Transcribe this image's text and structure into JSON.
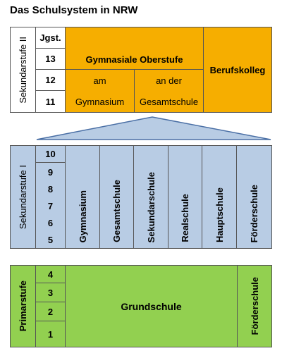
{
  "title": "Das Schulsystem in NRW",
  "sek2": {
    "label": "Sekundarstufe II",
    "jgst_header": "Jgst.",
    "grades": [
      "13",
      "12",
      "11"
    ],
    "gym_oberstufe": "Gymnasiale Oberstufe",
    "am": "am",
    "gymnasium": "Gymnasium",
    "an_der": "an der",
    "gesamtschule": "Gesamtschule",
    "berufskolleg": "Berufskolleg"
  },
  "sek1": {
    "label": "Sekundarstufe I",
    "grades": [
      "10",
      "9",
      "8",
      "7",
      "6",
      "5"
    ],
    "schools": [
      "Gymnasium",
      "Gesamtschule",
      "Sekundarschule",
      "Realschule",
      "Hauptschule",
      "Förderschule"
    ]
  },
  "primar": {
    "label": "Primarstufe",
    "grades": [
      "4",
      "3",
      "2",
      "1"
    ],
    "grundschule": "Grundschule",
    "foerderschule": "Förderschule"
  },
  "colors": {
    "orange": "#f6ae00",
    "blue": "#b8cce4",
    "green": "#92d050",
    "border": "#555555",
    "triangle_stroke": "#4a6fa5"
  }
}
